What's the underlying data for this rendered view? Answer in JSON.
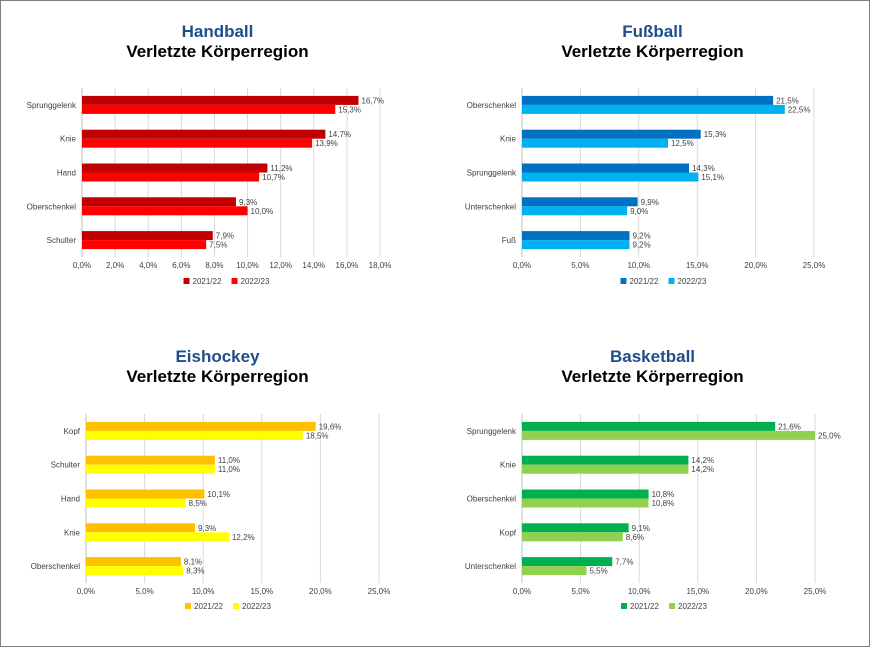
{
  "chart_data": [
    {
      "type": "bar",
      "orientation": "horizontal",
      "title": "Handball",
      "subtitle": "Verletzte Körperregion",
      "categories": [
        "Sprunggelenk",
        "Knie",
        "Hand",
        "Oberschenkel",
        "Schulter"
      ],
      "series": [
        {
          "name": "2021/22",
          "values": [
            16.7,
            14.7,
            11.2,
            9.3,
            7.9
          ],
          "labels": [
            "16,7%",
            "14,7%",
            "11,2%",
            "9,3%",
            "7,9%"
          ],
          "color": "#c00000"
        },
        {
          "name": "2022/23",
          "values": [
            15.3,
            13.9,
            10.7,
            10.0,
            7.5
          ],
          "labels": [
            "15,3%",
            "13,9%",
            "10,7%",
            "10,0%",
            "7,5%"
          ],
          "color": "#ff0000"
        }
      ],
      "xlim": [
        0,
        18
      ],
      "ticks": [
        "0,0%",
        "2,0%",
        "4,0%",
        "6,0%",
        "8,0%",
        "10,0%",
        "12,0%",
        "14,0%",
        "16,0%",
        "18,0%"
      ],
      "title_color": "#1f4e8c",
      "grid": true,
      "legend": "bottom"
    },
    {
      "type": "bar",
      "orientation": "horizontal",
      "title": "Fußball",
      "subtitle": "Verletzte Körperregion",
      "categories": [
        "Oberschenkel",
        "Knie",
        "Sprunggelenk",
        "Unterschenkel",
        "Fuß"
      ],
      "series": [
        {
          "name": "2021/22",
          "values": [
            21.5,
            15.3,
            14.3,
            9.9,
            9.2
          ],
          "labels": [
            "21,5%",
            "15,3%",
            "14,3%",
            "9,9%",
            "9,2%"
          ],
          "color": "#0070c0"
        },
        {
          "name": "2022/23",
          "values": [
            22.5,
            12.5,
            15.1,
            9.0,
            9.2
          ],
          "labels": [
            "22,5%",
            "12,5%",
            "15,1%",
            "9,0%",
            "9,2%"
          ],
          "color": "#00b0f0"
        }
      ],
      "xlim": [
        0,
        25
      ],
      "ticks": [
        "0,0%",
        "5,0%",
        "10,0%",
        "15,0%",
        "20,0%",
        "25,0%"
      ],
      "title_color": "#1f4e8c",
      "grid": true,
      "legend": "bottom"
    },
    {
      "type": "bar",
      "orientation": "horizontal",
      "title": "Eishockey",
      "subtitle": "Verletzte Körperregion",
      "categories": [
        "Kopf",
        "Schulter",
        "Hand",
        "Knie",
        "Oberschenkel"
      ],
      "series": [
        {
          "name": "2021/22",
          "values": [
            19.6,
            11.0,
            10.1,
            9.3,
            8.1
          ],
          "labels": [
            "19,6%",
            "11,0%",
            "10,1%",
            "9,3%",
            "8,1%"
          ],
          "color": "#ffc000"
        },
        {
          "name": "2022/23",
          "values": [
            18.5,
            11.0,
            8.5,
            12.2,
            8.3
          ],
          "labels": [
            "18,5%",
            "11,0%",
            "8,5%",
            "12,2%",
            "8,3%"
          ],
          "color": "#ffff00"
        }
      ],
      "xlim": [
        0,
        25
      ],
      "ticks": [
        "0,0%",
        "5,0%",
        "10,0%",
        "15,0%",
        "20,0%",
        "25,0%"
      ],
      "title_color": "#1f4e8c",
      "grid": true,
      "legend": "bottom"
    },
    {
      "type": "bar",
      "orientation": "horizontal",
      "title": "Basketball",
      "subtitle": "Verletzte Körperregion",
      "categories": [
        "Sprunggelenk",
        "Knie",
        "Oberschenkel",
        "Kopf",
        "Unterschenkel"
      ],
      "series": [
        {
          "name": "2021/22",
          "values": [
            21.6,
            14.2,
            10.8,
            9.1,
            7.7
          ],
          "labels": [
            "21,6%",
            "14,2%",
            "10,8%",
            "9,1%",
            "7,7%"
          ],
          "color": "#00b050"
        },
        {
          "name": "2022/23",
          "values": [
            25.0,
            14.2,
            10.8,
            8.6,
            5.5
          ],
          "labels": [
            "25,0%",
            "14,2%",
            "10,8%",
            "8,6%",
            "5,5%"
          ],
          "color": "#92d050"
        }
      ],
      "xlim": [
        0,
        25
      ],
      "ticks": [
        "0,0%",
        "5,0%",
        "10,0%",
        "15,0%",
        "20,0%",
        "25,0%"
      ],
      "title_color": "#1f4e8c",
      "grid": true,
      "legend": "bottom"
    }
  ]
}
